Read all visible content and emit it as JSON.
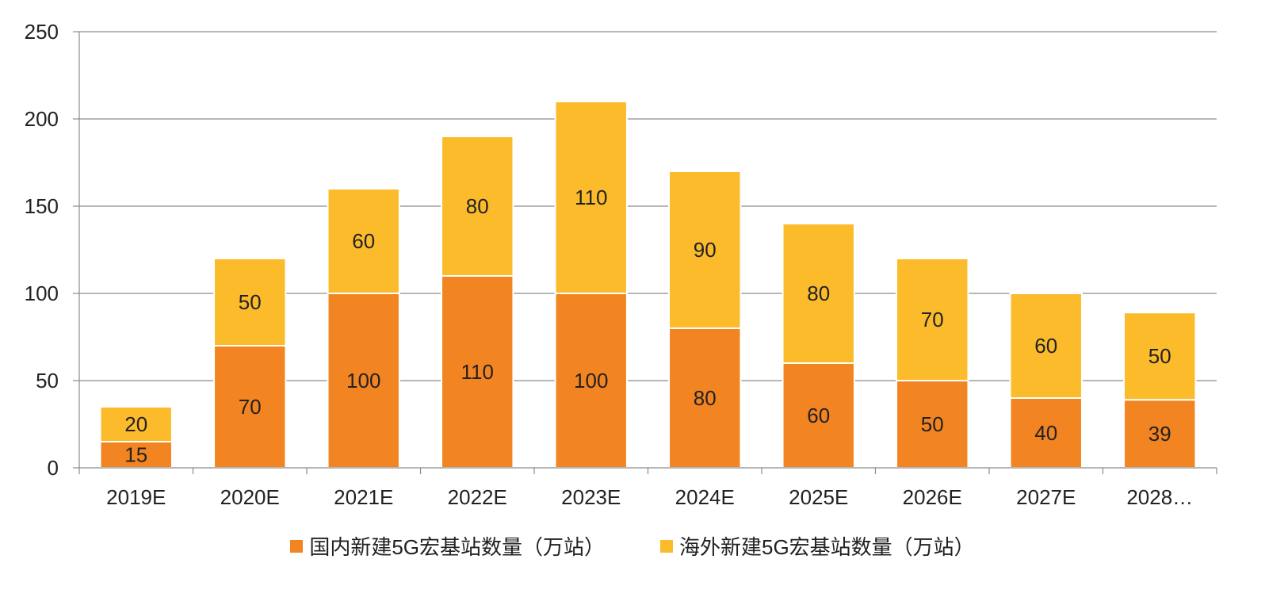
{
  "chart_data": {
    "type": "bar",
    "stacked": true,
    "categories": [
      "2019E",
      "2020E",
      "2021E",
      "2022E",
      "2023E",
      "2024E",
      "2025E",
      "2026E",
      "2027E",
      "2028…"
    ],
    "series": [
      {
        "name": "国内新建5G宏基站数量（万站）",
        "color": "#F28422",
        "values": [
          15,
          70,
          100,
          110,
          100,
          80,
          60,
          50,
          40,
          39
        ]
      },
      {
        "name": "海外新建5G宏基站数量（万站）",
        "color": "#FBBB2B",
        "values": [
          20,
          50,
          60,
          80,
          110,
          90,
          80,
          70,
          60,
          50
        ]
      }
    ],
    "ylim": [
      0,
      250
    ],
    "yticks": [
      0,
      50,
      100,
      150,
      200,
      250
    ],
    "grid": true,
    "legend_position": "bottom",
    "xlabel": "",
    "ylabel": "",
    "title": ""
  }
}
